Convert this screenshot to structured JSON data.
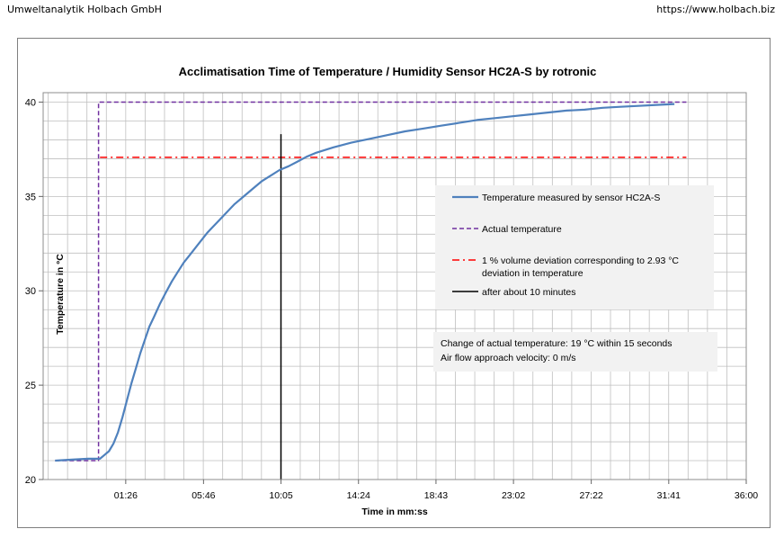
{
  "header": {
    "company": "Umweltanalytik Holbach GmbH",
    "url": "https://www.holbach.biz"
  },
  "chart_data": {
    "type": "line",
    "title": "Acclimatisation Time of Temperature / Humidity Sensor HC2A-S by rotronic",
    "xlabel": "Time in mm:ss",
    "ylabel": "Temperature in °C",
    "xlim_seconds": [
      -190,
      2160
    ],
    "ylim": [
      20,
      40.5
    ],
    "x_ticks": [
      "01:26",
      "05:46",
      "10:05",
      "14:24",
      "18:43",
      "23:02",
      "27:22",
      "31:41",
      "36:00"
    ],
    "y_ticks": [
      "20",
      "25",
      "30",
      "35",
      "40"
    ],
    "grid": true,
    "series": [
      {
        "name": "Temperature measured by sensor HC2A-S",
        "color": "#4f81bd",
        "style": "solid",
        "x_seconds": [
          -150,
          -100,
          -40,
          0,
          15,
          30,
          45,
          60,
          75,
          90,
          105,
          120,
          135,
          150,
          165,
          180,
          200,
          220,
          240,
          260,
          280,
          300,
          330,
          360,
          390,
          420,
          450,
          480,
          510,
          540,
          570,
          600,
          630,
          660,
          690,
          720,
          780,
          840,
          900,
          960,
          1020,
          1080,
          1140,
          1200,
          1260,
          1320,
          1380,
          1440,
          1500,
          1560,
          1620,
          1680,
          1740,
          1800,
          1860,
          1920
        ],
        "y": [
          21.0,
          21.05,
          21.1,
          21.1,
          21.3,
          21.5,
          21.9,
          22.5,
          23.3,
          24.2,
          25.1,
          25.9,
          26.7,
          27.4,
          28.1,
          28.6,
          29.3,
          29.9,
          30.5,
          31.0,
          31.5,
          31.9,
          32.5,
          33.1,
          33.6,
          34.1,
          34.6,
          35.0,
          35.4,
          35.8,
          36.1,
          36.4,
          36.6,
          36.85,
          37.1,
          37.3,
          37.6,
          37.85,
          38.05,
          38.25,
          38.45,
          38.6,
          38.75,
          38.9,
          39.05,
          39.15,
          39.25,
          39.35,
          39.45,
          39.55,
          39.6,
          39.7,
          39.75,
          39.8,
          39.85,
          39.9
        ]
      },
      {
        "name": "Actual temperature",
        "color": "#7030a0",
        "style": "dashed",
        "x_seconds": [
          -150,
          -5,
          -5,
          1960
        ],
        "y": [
          21.0,
          21.0,
          40.0,
          40.0
        ]
      },
      {
        "name": "1 % volume deviation corresponding to 2.93 °C deviation in temperature",
        "color": "#ff0000",
        "style": "dashdot",
        "x_seconds": [
          0,
          1960
        ],
        "y": [
          37.07,
          37.07
        ]
      },
      {
        "name": "after about 10 minutes",
        "color": "#000000",
        "style": "solid",
        "x_seconds": [
          605,
          605
        ],
        "y": [
          20.0,
          38.3
        ]
      }
    ],
    "legend": [
      "Temperature measured by sensor HC2A-S",
      "Actual temperature",
      "1 % volume deviation corresponding to 2.93 °C",
      "deviation in temperature",
      "after about 10 minutes"
    ],
    "legend_position": "right",
    "note": [
      "Change of actual temperature: 19 °C within 15 seconds",
      "Air flow approach velocity: 0 m/s"
    ]
  }
}
